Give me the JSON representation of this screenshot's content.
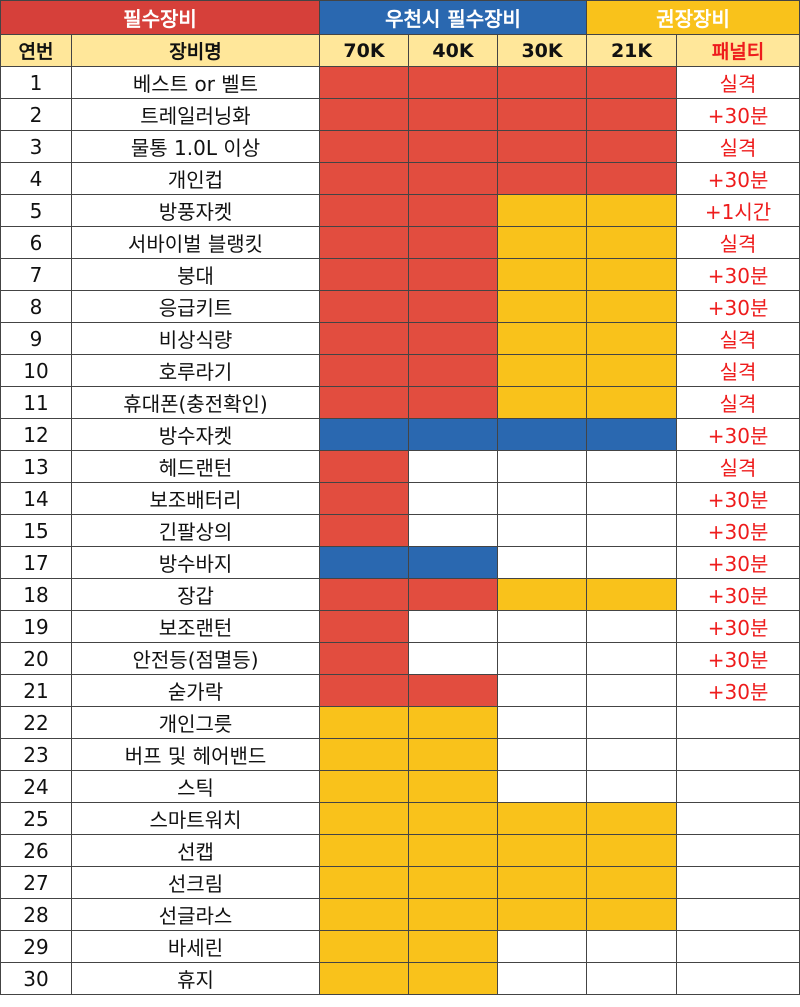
{
  "groups": {
    "required": "필수장비",
    "city": "우천시 필수장비",
    "recommended": "권장장비"
  },
  "headers": [
    "연번",
    "장비명",
    "70K",
    "40K",
    "30K",
    "21K",
    "패널티"
  ],
  "colors": {
    "required": "#e24d3f",
    "rain": "#2a68b0",
    "recommended": "#f9c21b",
    "penalty_text": "#ee1c1c"
  },
  "rows": [
    {
      "no": "1",
      "name": "베스트 or 벨트",
      "cells": [
        "r",
        "r",
        "r",
        "r"
      ],
      "penalty": "실격"
    },
    {
      "no": "2",
      "name": "트레일러닝화",
      "cells": [
        "r",
        "r",
        "r",
        "r"
      ],
      "penalty": "+30분"
    },
    {
      "no": "3",
      "name": "물통 1.0L 이상",
      "cells": [
        "r",
        "r",
        "r",
        "r"
      ],
      "penalty": "실격"
    },
    {
      "no": "4",
      "name": "개인컵",
      "cells": [
        "r",
        "r",
        "r",
        "r"
      ],
      "penalty": "+30분"
    },
    {
      "no": "5",
      "name": "방풍자켓",
      "cells": [
        "r",
        "r",
        "y",
        "y"
      ],
      "penalty": "+1시간"
    },
    {
      "no": "6",
      "name": "서바이벌 블랭킷",
      "cells": [
        "r",
        "r",
        "y",
        "y"
      ],
      "penalty": "실격"
    },
    {
      "no": "7",
      "name": "붕대",
      "cells": [
        "r",
        "r",
        "y",
        "y"
      ],
      "penalty": "+30분"
    },
    {
      "no": "8",
      "name": "응급키트",
      "cells": [
        "r",
        "r",
        "y",
        "y"
      ],
      "penalty": "+30분"
    },
    {
      "no": "9",
      "name": "비상식량",
      "cells": [
        "r",
        "r",
        "y",
        "y"
      ],
      "penalty": "실격"
    },
    {
      "no": "10",
      "name": "호루라기",
      "cells": [
        "r",
        "r",
        "y",
        "y"
      ],
      "penalty": "실격"
    },
    {
      "no": "11",
      "name": "휴대폰(충전확인)",
      "cells": [
        "r",
        "r",
        "y",
        "y"
      ],
      "penalty": "실격"
    },
    {
      "no": "12",
      "name": "방수자켓",
      "cells": [
        "b",
        "b",
        "b",
        "b"
      ],
      "penalty": "+30분"
    },
    {
      "no": "13",
      "name": "헤드랜턴",
      "cells": [
        "r",
        "w",
        "w",
        "w"
      ],
      "penalty": "실격"
    },
    {
      "no": "14",
      "name": "보조배터리",
      "cells": [
        "r",
        "w",
        "w",
        "w"
      ],
      "penalty": "+30분"
    },
    {
      "no": "15",
      "name": "긴팔상의",
      "cells": [
        "r",
        "w",
        "w",
        "w"
      ],
      "penalty": "+30분"
    },
    {
      "no": "17",
      "name": "방수바지",
      "cells": [
        "b",
        "b",
        "w",
        "w"
      ],
      "penalty": "+30분"
    },
    {
      "no": "18",
      "name": "장갑",
      "cells": [
        "r",
        "r",
        "y",
        "y"
      ],
      "penalty": "+30분"
    },
    {
      "no": "19",
      "name": "보조랜턴",
      "cells": [
        "r",
        "w",
        "w",
        "w"
      ],
      "penalty": "+30분"
    },
    {
      "no": "20",
      "name": "안전등(점멸등)",
      "cells": [
        "r",
        "w",
        "w",
        "w"
      ],
      "penalty": "+30분"
    },
    {
      "no": "21",
      "name": "숟가락",
      "cells": [
        "r",
        "r",
        "w",
        "w"
      ],
      "penalty": "+30분"
    },
    {
      "no": "22",
      "name": "개인그릇",
      "cells": [
        "y",
        "y",
        "w",
        "w"
      ],
      "penalty": ""
    },
    {
      "no": "23",
      "name": "버프 및 헤어밴드",
      "cells": [
        "y",
        "y",
        "w",
        "w"
      ],
      "penalty": ""
    },
    {
      "no": "24",
      "name": "스틱",
      "cells": [
        "y",
        "y",
        "w",
        "w"
      ],
      "penalty": ""
    },
    {
      "no": "25",
      "name": "스마트워치",
      "cells": [
        "y",
        "y",
        "y",
        "y"
      ],
      "penalty": ""
    },
    {
      "no": "26",
      "name": "선캡",
      "cells": [
        "y",
        "y",
        "y",
        "y"
      ],
      "penalty": ""
    },
    {
      "no": "27",
      "name": "선크림",
      "cells": [
        "y",
        "y",
        "y",
        "y"
      ],
      "penalty": ""
    },
    {
      "no": "28",
      "name": "선글라스",
      "cells": [
        "y",
        "y",
        "y",
        "y"
      ],
      "penalty": ""
    },
    {
      "no": "29",
      "name": "바세린",
      "cells": [
        "y",
        "y",
        "w",
        "w"
      ],
      "penalty": ""
    },
    {
      "no": "30",
      "name": "휴지",
      "cells": [
        "y",
        "y",
        "w",
        "w"
      ],
      "penalty": ""
    }
  ]
}
